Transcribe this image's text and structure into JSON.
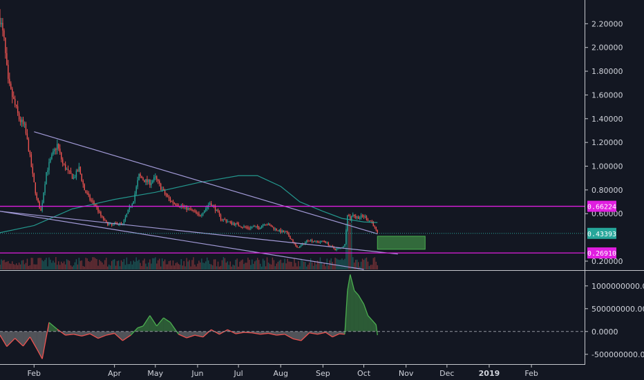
{
  "chart_data": [
    {
      "type": "candlestick",
      "panel": "price",
      "y_axis": {
        "ticks": [
          "2.20000",
          "2.00000",
          "1.80000",
          "1.60000",
          "1.40000",
          "1.20000",
          "1.00000",
          "0.80000",
          "0.60000",
          "0.20000"
        ],
        "tick_values": [
          2.2,
          2.0,
          1.8,
          1.6,
          1.4,
          1.2,
          1.0,
          0.8,
          0.6,
          0.2
        ],
        "range": [
          0.13,
          2.33
        ]
      },
      "x_axis": {
        "labels": [
          "Feb",
          "Apr",
          "May",
          "Jun",
          "Jul",
          "Aug",
          "Sep",
          "Oct",
          "Nov",
          "Dec",
          "2019",
          "Feb"
        ],
        "label_dates": [
          "2018-02-01",
          "2018-04-01",
          "2018-05-01",
          "2018-06-01",
          "2018-07-01",
          "2018-08-01",
          "2018-09-01",
          "2018-10-01",
          "2018-11-01",
          "2018-12-01",
          "2019-01-01",
          "2019-02-01"
        ],
        "range": [
          "2018-01-07",
          "2019-03-12"
        ]
      },
      "price_path": [
        [
          "2018-01-07",
          2.25
        ],
        [
          "2018-01-10",
          2.05
        ],
        [
          "2018-01-13",
          1.7
        ],
        [
          "2018-01-17",
          1.55
        ],
        [
          "2018-01-21",
          1.4
        ],
        [
          "2018-01-25",
          1.33
        ],
        [
          "2018-01-28",
          1.15
        ],
        [
          "2018-01-31",
          0.92
        ],
        [
          "2018-02-03",
          0.72
        ],
        [
          "2018-02-06",
          0.62
        ],
        [
          "2018-02-10",
          0.95
        ],
        [
          "2018-02-14",
          1.08
        ],
        [
          "2018-02-18",
          1.18
        ],
        [
          "2018-02-22",
          1.02
        ],
        [
          "2018-02-26",
          0.95
        ],
        [
          "2018-03-02",
          0.9
        ],
        [
          "2018-03-06",
          0.98
        ],
        [
          "2018-03-10",
          0.8
        ],
        [
          "2018-03-14",
          0.72
        ],
        [
          "2018-03-18",
          0.67
        ],
        [
          "2018-03-22",
          0.58
        ],
        [
          "2018-03-26",
          0.52
        ],
        [
          "2018-03-30",
          0.5
        ],
        [
          "2018-04-03",
          0.52
        ],
        [
          "2018-04-07",
          0.51
        ],
        [
          "2018-04-11",
          0.62
        ],
        [
          "2018-04-15",
          0.72
        ],
        [
          "2018-04-19",
          0.92
        ],
        [
          "2018-04-23",
          0.88
        ],
        [
          "2018-04-27",
          0.86
        ],
        [
          "2018-05-01",
          0.9
        ],
        [
          "2018-05-05",
          0.82
        ],
        [
          "2018-05-09",
          0.75
        ],
        [
          "2018-05-13",
          0.7
        ],
        [
          "2018-05-17",
          0.68
        ],
        [
          "2018-05-21",
          0.66
        ],
        [
          "2018-05-25",
          0.64
        ],
        [
          "2018-05-29",
          0.62
        ],
        [
          "2018-06-02",
          0.58
        ],
        [
          "2018-06-06",
          0.63
        ],
        [
          "2018-06-10",
          0.69
        ],
        [
          "2018-06-14",
          0.64
        ],
        [
          "2018-06-18",
          0.56
        ],
        [
          "2018-06-22",
          0.54
        ],
        [
          "2018-06-26",
          0.52
        ],
        [
          "2018-06-30",
          0.51
        ],
        [
          "2018-07-04",
          0.49
        ],
        [
          "2018-07-08",
          0.48
        ],
        [
          "2018-07-12",
          0.49
        ],
        [
          "2018-07-16",
          0.48
        ],
        [
          "2018-07-20",
          0.52
        ],
        [
          "2018-07-24",
          0.5
        ],
        [
          "2018-07-28",
          0.47
        ],
        [
          "2018-08-01",
          0.45
        ],
        [
          "2018-08-05",
          0.44
        ],
        [
          "2018-08-09",
          0.38
        ],
        [
          "2018-08-13",
          0.31
        ],
        [
          "2018-08-17",
          0.34
        ],
        [
          "2018-08-21",
          0.38
        ],
        [
          "2018-08-25",
          0.37
        ],
        [
          "2018-08-29",
          0.36
        ],
        [
          "2018-09-02",
          0.37
        ],
        [
          "2018-09-06",
          0.33
        ],
        [
          "2018-09-10",
          0.3
        ],
        [
          "2018-09-14",
          0.31
        ],
        [
          "2018-09-17",
          0.34
        ],
        [
          "2018-09-19",
          0.6
        ],
        [
          "2018-09-21",
          0.55
        ],
        [
          "2018-09-23",
          0.6
        ],
        [
          "2018-09-25",
          0.57
        ],
        [
          "2018-09-28",
          0.57
        ],
        [
          "2018-10-01",
          0.58
        ],
        [
          "2018-10-04",
          0.55
        ],
        [
          "2018-10-07",
          0.53
        ],
        [
          "2018-10-09",
          0.48
        ],
        [
          "2018-10-11",
          0.43
        ]
      ],
      "moving_average": [
        [
          "2018-01-07",
          0.44
        ],
        [
          "2018-02-01",
          0.5
        ],
        [
          "2018-03-01",
          0.64
        ],
        [
          "2018-04-01",
          0.72
        ],
        [
          "2018-05-01",
          0.78
        ],
        [
          "2018-06-01",
          0.86
        ],
        [
          "2018-07-01",
          0.92
        ],
        [
          "2018-07-15",
          0.92
        ],
        [
          "2018-08-01",
          0.83
        ],
        [
          "2018-08-15",
          0.7
        ],
        [
          "2018-09-01",
          0.62
        ],
        [
          "2018-09-15",
          0.56
        ],
        [
          "2018-10-01",
          0.53
        ],
        [
          "2018-10-11",
          0.525
        ]
      ],
      "trendlines": [
        {
          "from": [
            "2018-02-01",
            1.29
          ],
          "to": [
            "2018-10-11",
            0.43
          ]
        },
        {
          "from": [
            "2018-01-07",
            0.62
          ],
          "to": [
            "2018-10-01",
            0.13
          ]
        },
        {
          "from": [
            "2018-01-07",
            0.62
          ],
          "to": [
            "2018-10-26",
            0.26
          ]
        }
      ],
      "horizontal_levels": [
        {
          "value": 0.66224,
          "label": "0.66224",
          "color": "#e01ee0",
          "style": "solid"
        },
        {
          "value": 0.43393,
          "label": "0.43393",
          "color": "#26a69a",
          "style": "dotted"
        },
        {
          "value": 0.2691,
          "label": "0.26910",
          "color": "#e01ee0",
          "style": "solid"
        }
      ],
      "target_box": {
        "x_from": "2018-10-11",
        "x_to": "2018-11-15",
        "y_from": 0.3,
        "y_to": 0.41,
        "color": "#4caf50"
      },
      "colors": {
        "up": "#26a69a",
        "down": "#ef5350",
        "ma": "#26a69a",
        "trendline": "#a39bd8",
        "level": "#e01ee0"
      }
    },
    {
      "type": "area",
      "panel": "indicator",
      "y_axis": {
        "ticks": [
          "1000000000.0000",
          "500000000.0000",
          "0.0000",
          "-500000000.0000"
        ],
        "tick_values": [
          1000000000,
          500000000,
          0,
          -500000000
        ],
        "range": [
          -700000000,
          1300000000
        ]
      },
      "series": [
        {
          "x": [
            "2018-01-07",
            "2018-01-12",
            "2018-01-18",
            "2018-01-24",
            "2018-01-29",
            "2018-02-03",
            "2018-02-07",
            "2018-02-12",
            "2018-02-18",
            "2018-02-24",
            "2018-03-02",
            "2018-03-08",
            "2018-03-14",
            "2018-03-20",
            "2018-03-26",
            "2018-04-01",
            "2018-04-07",
            "2018-04-13",
            "2018-04-18",
            "2018-04-22",
            "2018-04-27",
            "2018-05-02",
            "2018-05-07",
            "2018-05-12",
            "2018-05-18",
            "2018-05-24",
            "2018-05-30",
            "2018-06-05",
            "2018-06-11",
            "2018-06-17",
            "2018-06-23",
            "2018-06-29",
            "2018-07-05",
            "2018-07-11",
            "2018-07-17",
            "2018-07-23",
            "2018-07-29",
            "2018-08-04",
            "2018-08-10",
            "2018-08-16",
            "2018-08-22",
            "2018-08-28",
            "2018-09-03",
            "2018-09-08",
            "2018-09-13",
            "2018-09-17",
            "2018-09-19",
            "2018-09-21",
            "2018-09-24",
            "2018-09-27",
            "2018-10-01",
            "2018-10-04",
            "2018-10-07",
            "2018-10-10",
            "2018-10-11"
          ],
          "values": [
            -80000000,
            -330000000,
            -150000000,
            -320000000,
            -120000000,
            -380000000,
            -600000000,
            200000000,
            50000000,
            -80000000,
            -60000000,
            -100000000,
            -50000000,
            -150000000,
            -80000000,
            -40000000,
            -200000000,
            -80000000,
            80000000,
            120000000,
            350000000,
            120000000,
            300000000,
            200000000,
            -60000000,
            -140000000,
            -80000000,
            -120000000,
            40000000,
            -60000000,
            40000000,
            -50000000,
            -20000000,
            -30000000,
            -60000000,
            -40000000,
            -80000000,
            -60000000,
            -160000000,
            -200000000,
            -30000000,
            -60000000,
            -20000000,
            -120000000,
            -50000000,
            -60000000,
            900000000,
            1250000000,
            900000000,
            800000000,
            600000000,
            350000000,
            250000000,
            150000000,
            -80000000
          ]
        }
      ],
      "zero_line": {
        "value": 0,
        "style": "dashed"
      },
      "colors": {
        "fill_pos": "#4caf50",
        "fill_neg": "#9e9e9e",
        "line_pos": "#4caf50",
        "line_neg": "#ef5350"
      }
    }
  ]
}
